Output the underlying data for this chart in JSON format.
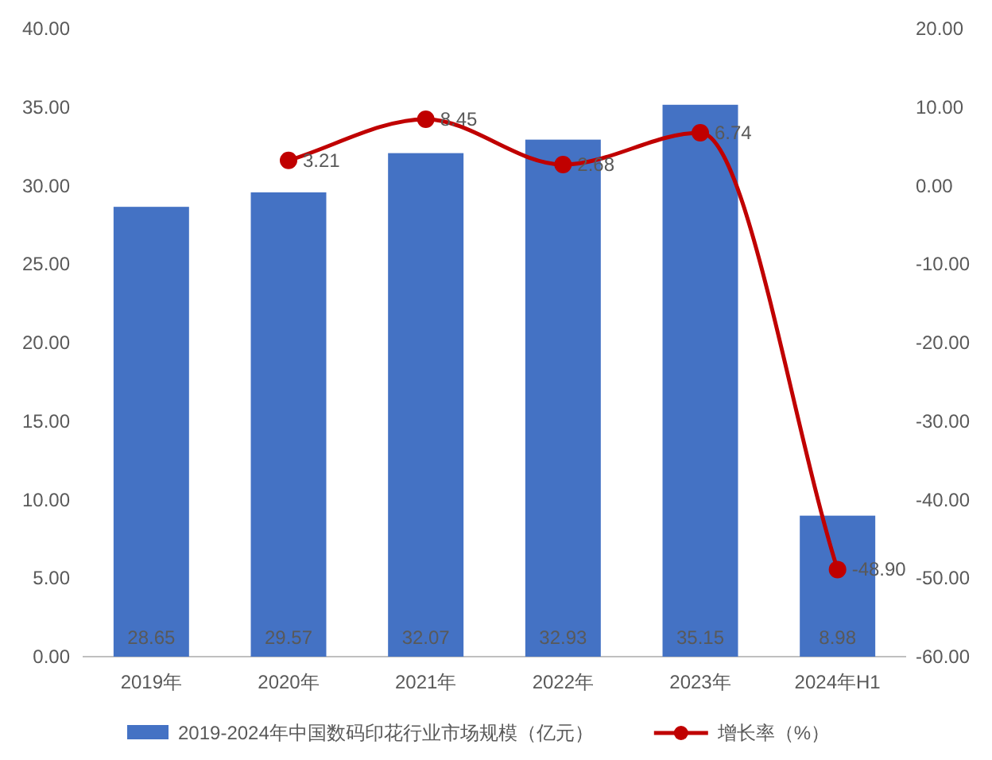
{
  "chart_data": {
    "type": "bar",
    "categories": [
      "2019年",
      "2020年",
      "2021年",
      "2022年",
      "2023年",
      "2024年H1"
    ],
    "series": [
      {
        "name": "2019-2024年中国数码印花行业市场规模（亿元）",
        "color": "#4472c4",
        "values": [
          28.65,
          29.57,
          32.07,
          32.93,
          35.15,
          8.98
        ]
      },
      {
        "name": "增长率（%）",
        "type": "line",
        "axis": "y2",
        "color": "#c00000",
        "marker": "circle",
        "values": [
          null,
          3.21,
          8.45,
          2.68,
          6.74,
          -48.9
        ],
        "value_labels": [
          null,
          "3.21",
          "8.45",
          "2.68",
          "6.74",
          "-48.90"
        ]
      }
    ],
    "ylim": [
      0,
      40
    ],
    "yticks": [
      {
        "value": 0,
        "label": "0.00"
      },
      {
        "value": 5,
        "label": "5.00"
      },
      {
        "value": 10,
        "label": "10.00"
      },
      {
        "value": 15,
        "label": "15.00"
      },
      {
        "value": 20,
        "label": "20.00"
      },
      {
        "value": 25,
        "label": "25.00"
      },
      {
        "value": 30,
        "label": "30.00"
      },
      {
        "value": 35,
        "label": "35.00"
      },
      {
        "value": 40,
        "label": "40.00"
      }
    ],
    "y2lim": [
      -60,
      20
    ],
    "y2ticks": [
      {
        "value": -60,
        "label": "-60.00"
      },
      {
        "value": -50,
        "label": "-50.00"
      },
      {
        "value": -40,
        "label": "-40.00"
      },
      {
        "value": -30,
        "label": "-30.00"
      },
      {
        "value": -20,
        "label": "-20.00"
      },
      {
        "value": -10,
        "label": "-10.00"
      },
      {
        "value": 0,
        "label": "0.00"
      },
      {
        "value": 10,
        "label": "10.00"
      },
      {
        "value": 20,
        "label": "20.00"
      }
    ],
    "data_labels": true,
    "legend": "bottom"
  }
}
